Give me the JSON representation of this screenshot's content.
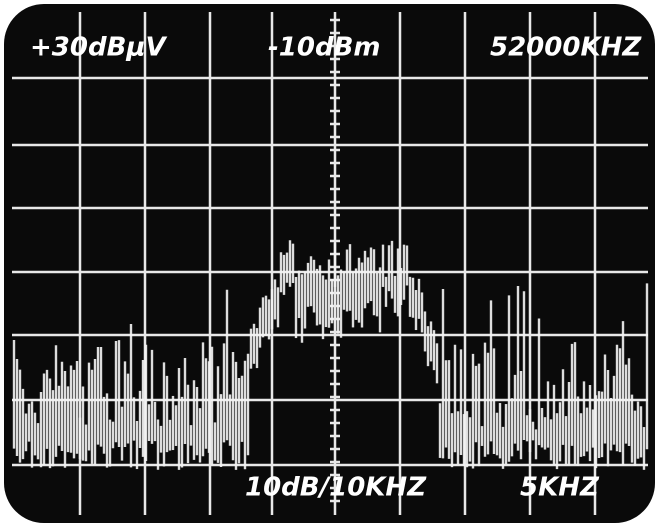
{
  "screen": {
    "reference_level": "+30dBμV",
    "attenuation": "-10dBm",
    "center_frequency": "52000KHZ",
    "scale_span": "10dB/10KHZ",
    "resolution_bandwidth": "5KHZ"
  }
}
